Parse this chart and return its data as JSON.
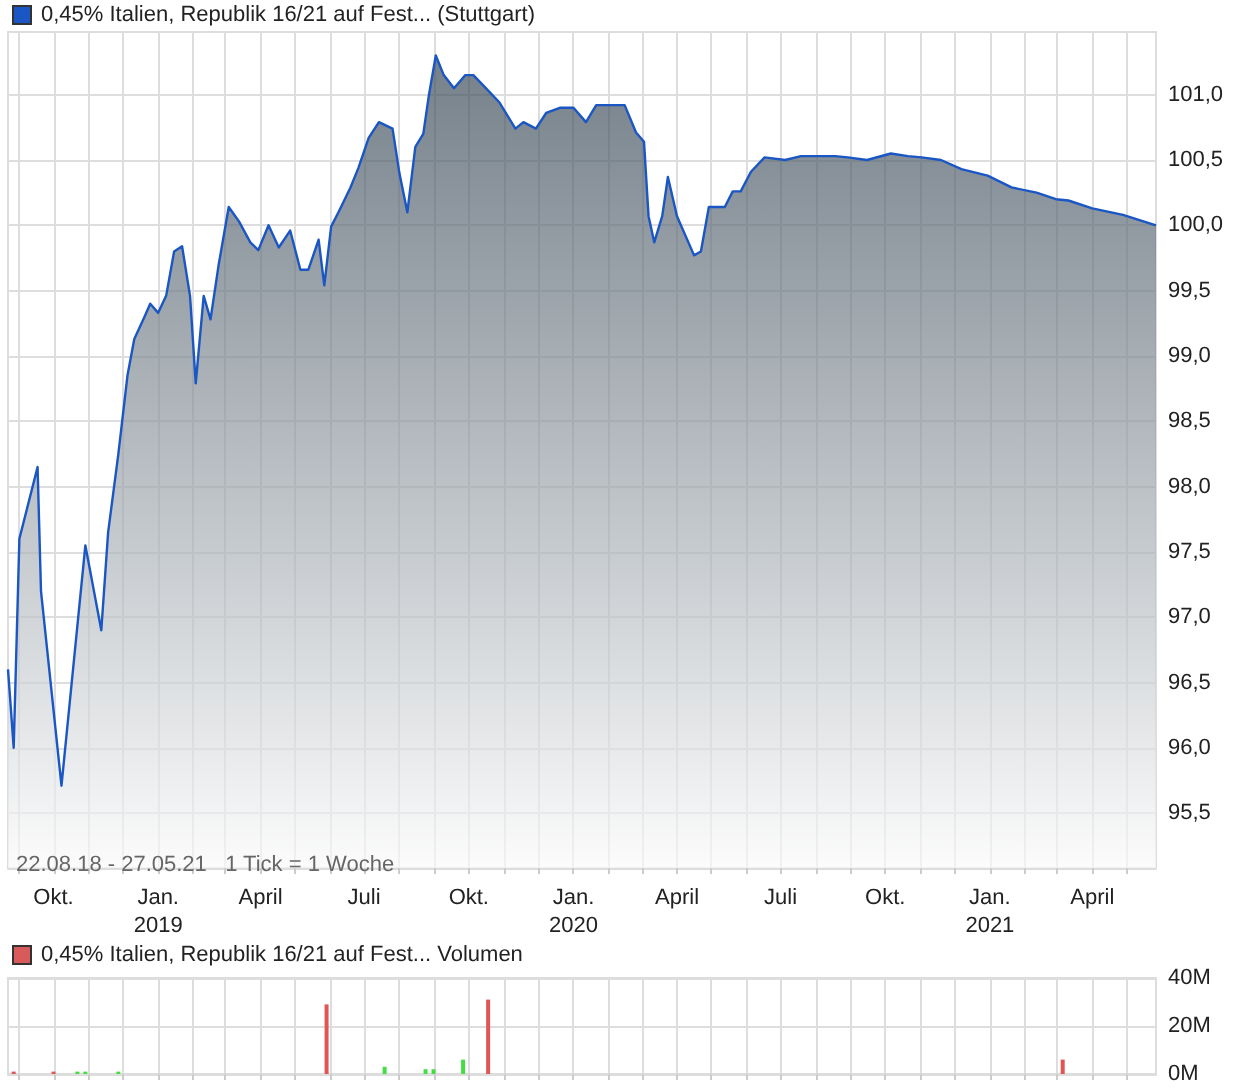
{
  "chart_data": [
    {
      "type": "area",
      "legend": "top left",
      "grid": true,
      "annotations": [
        "22.08.18 - 27.05.21   1 Tick = 1 Woche"
      ],
      "xlim": [
        "2018-08-22",
        "2021-05-27"
      ],
      "xticks": [
        {
          "value": "2018-09-01",
          "label": null
        },
        {
          "value": "2018-10-01",
          "label": "Okt."
        },
        {
          "value": "2018-11-01",
          "label": null
        },
        {
          "value": "2018-12-01",
          "label": null
        },
        {
          "value": "2019-01-01",
          "label": "Jan.\n2019"
        },
        {
          "value": "2019-02-01",
          "label": null
        },
        {
          "value": "2019-03-01",
          "label": null
        },
        {
          "value": "2019-04-01",
          "label": "April"
        },
        {
          "value": "2019-05-01",
          "label": null
        },
        {
          "value": "2019-06-01",
          "label": null
        },
        {
          "value": "2019-07-01",
          "label": "Juli"
        },
        {
          "value": "2019-08-01",
          "label": null
        },
        {
          "value": "2019-09-01",
          "label": null
        },
        {
          "value": "2019-10-01",
          "label": "Okt."
        },
        {
          "value": "2019-11-01",
          "label": null
        },
        {
          "value": "2019-12-01",
          "label": null
        },
        {
          "value": "2020-01-01",
          "label": "Jan.\n2020"
        },
        {
          "value": "2020-02-01",
          "label": null
        },
        {
          "value": "2020-03-01",
          "label": null
        },
        {
          "value": "2020-04-01",
          "label": "April"
        },
        {
          "value": "2020-05-01",
          "label": null
        },
        {
          "value": "2020-06-01",
          "label": null
        },
        {
          "value": "2020-07-01",
          "label": "Juli"
        },
        {
          "value": "2020-08-01",
          "label": null
        },
        {
          "value": "2020-09-01",
          "label": null
        },
        {
          "value": "2020-10-01",
          "label": "Okt."
        },
        {
          "value": "2020-11-01",
          "label": null
        },
        {
          "value": "2020-12-01",
          "label": null
        },
        {
          "value": "2021-01-01",
          "label": "Jan.\n2021"
        },
        {
          "value": "2021-02-01",
          "label": null
        },
        {
          "value": "2021-03-01",
          "label": null
        },
        {
          "value": "2021-04-01",
          "label": "April"
        },
        {
          "value": "2021-05-01",
          "label": null
        }
      ],
      "ylim": [
        95.08,
        101.48
      ],
      "yticks": [
        {
          "value": 95.5,
          "label": "95,5"
        },
        {
          "value": 96,
          "label": "96,0"
        },
        {
          "value": 96.5,
          "label": "96,5"
        },
        {
          "value": 97,
          "label": "97,0"
        },
        {
          "value": 97.5,
          "label": "97,5"
        },
        {
          "value": 98,
          "label": "98,0"
        },
        {
          "value": 98.5,
          "label": "98,5"
        },
        {
          "value": 99,
          "label": "99,0"
        },
        {
          "value": 99.5,
          "label": "99,5"
        },
        {
          "value": 100,
          "label": "100,0"
        },
        {
          "value": 100.5,
          "label": "100,5"
        },
        {
          "value": 101,
          "label": "101,0"
        }
      ],
      "series": [
        {
          "name": "0,45% Italien, Republik 16/21 auf Fest... (Stuttgart)",
          "color": "#1a56c4",
          "x": [
            "2018-08-22",
            "2018-08-27",
            "2018-09-01",
            "2018-09-17",
            "2018-09-20",
            "2018-10-08",
            "2018-10-29",
            "2018-11-12",
            "2018-11-18",
            "2018-11-27",
            "2018-12-05",
            "2018-12-11",
            "2018-12-20",
            "2018-12-25",
            "2019-01-01",
            "2019-01-08",
            "2019-01-15",
            "2019-01-22",
            "2019-01-29",
            "2019-02-03",
            "2019-02-10",
            "2019-02-16",
            "2019-02-23",
            "2019-03-04",
            "2019-03-13",
            "2019-03-23",
            "2019-03-30",
            "2019-04-08",
            "2019-04-17",
            "2019-04-27",
            "2019-05-06",
            "2019-05-13",
            "2019-05-22",
            "2019-05-27",
            "2019-06-02",
            "2019-06-09",
            "2019-06-19",
            "2019-06-26",
            "2019-07-05",
            "2019-07-14",
            "2019-07-26",
            "2019-08-01",
            "2019-08-08",
            "2019-08-15",
            "2019-08-22",
            "2019-08-27",
            "2019-09-02",
            "2019-09-09",
            "2019-09-18",
            "2019-09-28",
            "2019-10-05",
            "2019-10-16",
            "2019-10-28",
            "2019-11-11",
            "2019-11-18",
            "2019-11-29",
            "2019-12-08",
            "2019-12-20",
            "2020-01-01",
            "2020-01-12",
            "2020-01-21",
            "2020-01-30",
            "2020-02-15",
            "2020-02-25",
            "2020-03-03",
            "2020-03-07",
            "2020-03-12",
            "2020-03-19",
            "2020-03-24",
            "2020-04-01",
            "2020-04-16",
            "2020-04-22",
            "2020-04-29",
            "2020-05-13",
            "2020-05-20",
            "2020-05-27",
            "2020-06-05",
            "2020-06-17",
            "2020-07-05",
            "2020-07-19",
            "2020-08-18",
            "2020-08-29",
            "2020-09-15",
            "2020-10-06",
            "2020-10-21",
            "2020-11-02",
            "2020-11-19",
            "2020-12-07",
            "2020-12-30",
            "2021-01-20",
            "2021-02-11",
            "2021-02-28",
            "2021-03-11",
            "2021-04-01",
            "2021-04-28",
            "2021-05-27"
          ],
          "values": [
            96.6,
            96.0,
            97.6,
            98.15,
            97.2,
            95.71,
            97.55,
            96.9,
            97.65,
            98.25,
            98.85,
            99.13,
            99.3,
            99.4,
            99.33,
            99.46,
            99.8,
            99.84,
            99.46,
            98.79,
            99.46,
            99.28,
            99.69,
            100.14,
            100.03,
            99.87,
            99.81,
            100.0,
            99.83,
            99.96,
            99.66,
            99.66,
            99.89,
            99.54,
            99.99,
            100.11,
            100.29,
            100.44,
            100.67,
            100.79,
            100.74,
            100.4,
            100.1,
            100.6,
            100.7,
            101.0,
            101.3,
            101.15,
            101.05,
            101.15,
            101.15,
            101.05,
            100.94,
            100.74,
            100.79,
            100.74,
            100.86,
            100.9,
            100.9,
            100.79,
            100.92,
            100.92,
            100.92,
            100.71,
            100.64,
            100.07,
            99.87,
            100.07,
            100.37,
            100.07,
            99.77,
            99.8,
            100.14,
            100.14,
            100.26,
            100.26,
            100.41,
            100.52,
            100.5,
            100.53,
            100.53,
            100.52,
            100.5,
            100.55,
            100.53,
            100.52,
            100.5,
            100.43,
            100.38,
            100.29,
            100.25,
            100.2,
            100.19,
            100.13,
            100.08,
            100.0
          ]
        }
      ]
    },
    {
      "type": "bar",
      "legend": "top left",
      "grid": true,
      "tick_labels": "y",
      "xlim": [
        "2018-08-22",
        "2021-05-27"
      ],
      "xticks": [
        {
          "value": "2018-09-01",
          "label": null
        },
        {
          "value": "2018-10-01",
          "label": null
        },
        {
          "value": "2018-11-01",
          "label": null
        },
        {
          "value": "2018-12-01",
          "label": null
        },
        {
          "value": "2019-01-01",
          "label": null
        },
        {
          "value": "2019-02-01",
          "label": null
        },
        {
          "value": "2019-03-01",
          "label": null
        },
        {
          "value": "2019-04-01",
          "label": null
        },
        {
          "value": "2019-05-01",
          "label": null
        },
        {
          "value": "2019-06-01",
          "label": null
        },
        {
          "value": "2019-07-01",
          "label": null
        },
        {
          "value": "2019-08-01",
          "label": null
        },
        {
          "value": "2019-09-01",
          "label": null
        },
        {
          "value": "2019-10-01",
          "label": null
        },
        {
          "value": "2019-11-01",
          "label": null
        },
        {
          "value": "2019-12-01",
          "label": null
        },
        {
          "value": "2020-01-01",
          "label": null
        },
        {
          "value": "2020-02-01",
          "label": null
        },
        {
          "value": "2020-03-01",
          "label": null
        },
        {
          "value": "2020-04-01",
          "label": null
        },
        {
          "value": "2020-05-01",
          "label": null
        },
        {
          "value": "2020-06-01",
          "label": null
        },
        {
          "value": "2020-07-01",
          "label": null
        },
        {
          "value": "2020-08-01",
          "label": null
        },
        {
          "value": "2020-09-01",
          "label": null
        },
        {
          "value": "2020-10-01",
          "label": null
        },
        {
          "value": "2020-11-01",
          "label": null
        },
        {
          "value": "2020-12-01",
          "label": null
        },
        {
          "value": "2021-01-01",
          "label": null
        },
        {
          "value": "2021-02-01",
          "label": null
        },
        {
          "value": "2021-03-01",
          "label": null
        },
        {
          "value": "2021-04-01",
          "label": null
        },
        {
          "value": "2021-05-01",
          "label": null
        }
      ],
      "ylim": [
        0,
        40000000
      ],
      "yticks": [
        {
          "value": 0,
          "label": "0M"
        },
        {
          "value": 20000000,
          "label": "20M"
        },
        {
          "value": 40000000,
          "label": "40M"
        }
      ],
      "series": [
        {
          "name": "0,45% Italien, Republik 16/21 auf Fest... Volumen",
          "color": "#d85a5a",
          "x": [
            "2018-08-27",
            "2018-10-01",
            "2018-10-22",
            "2018-10-29",
            "2018-11-27",
            "2019-05-29",
            "2019-07-19",
            "2019-08-24",
            "2019-08-31",
            "2019-09-26",
            "2019-10-18",
            "2021-03-06"
          ],
          "values": [
            1000000,
            1000000,
            1000000,
            1000000,
            1000000,
            29000000,
            3000000,
            2000000,
            2000000,
            6000000,
            31000000,
            6000000
          ],
          "colors": [
            "#e05555",
            "#e05555",
            "#44dd44",
            "#44dd44",
            "#44dd44",
            "#e05555",
            "#44dd44",
            "#44dd44",
            "#44dd44",
            "#44dd44",
            "#e05555",
            "#e05555"
          ]
        }
      ]
    }
  ]
}
